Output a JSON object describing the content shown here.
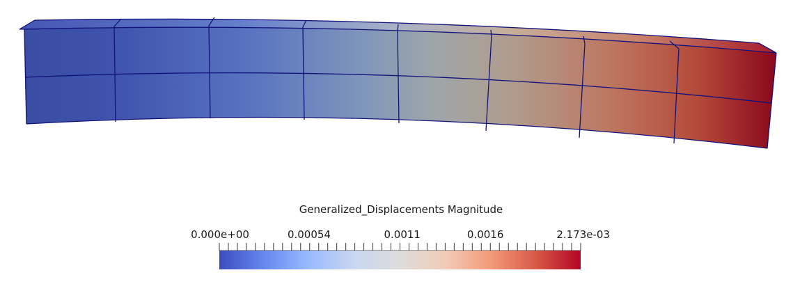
{
  "scalar_bar": {
    "title": "Generalized_Displacements Magnitude",
    "labels": [
      "0.000e+00",
      "0.00054",
      "0.0011",
      "0.0016",
      "2.173e-03"
    ],
    "label_values": [
      0,
      0.00054,
      0.0011,
      0.0016,
      0.002173
    ],
    "range": [
      0,
      0.002173
    ],
    "colormap": [
      "#3b4cc0",
      "#6788ee",
      "#9abbff",
      "#c9d7f0",
      "#dddcdc",
      "#f2cbb7",
      "#f49a7b",
      "#d85a48",
      "#b40426"
    ]
  },
  "mesh": {
    "edge_color": "#12127a"
  }
}
